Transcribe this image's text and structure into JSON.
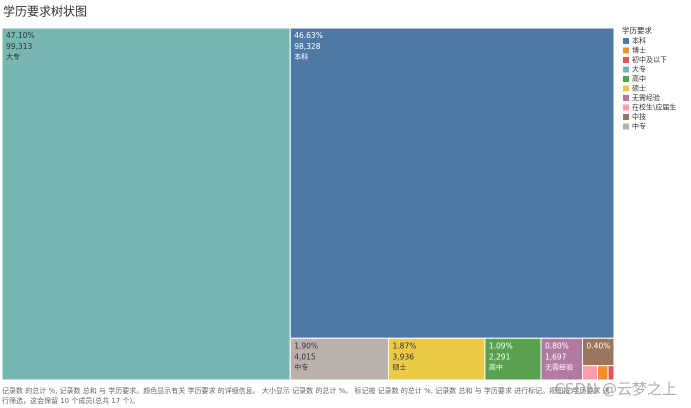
{
  "chart_data": {
    "type": "treemap",
    "title": "学历要求树状图",
    "legend_title": "学历要求",
    "categories": [
      "本科",
      "博士",
      "初中及以下",
      "大专",
      "高中",
      "硕士",
      "无需经验",
      "在校生\\应届生",
      "中技",
      "中专"
    ],
    "values": [
      98328,
      148,
      84,
      99313,
      2291,
      3936,
      1697,
      211,
      843,
      4015
    ],
    "value_labels": [
      "98,328",
      null,
      null,
      "99,313",
      "2,291",
      "3,936",
      "1,697",
      null,
      null,
      "4,015"
    ],
    "percents": [
      46.63,
      0.07,
      0.04,
      47.1,
      1.09,
      1.87,
      0.8,
      0.1,
      0.4,
      1.9
    ],
    "percent_labels": [
      "46.63%",
      null,
      null,
      "47.10%",
      "1.09%",
      "1.87%",
      "0.80%",
      null,
      "0.40%",
      "1.90%"
    ],
    "colors": [
      "#4e79a7",
      "#f28e2b",
      "#e15759",
      "#76b7b2",
      "#59a14f",
      "#edc948",
      "#b07aa1",
      "#ff9da7",
      "#9c755f",
      "#bab0ac"
    ],
    "footer": "记录数 的总计 %, 记录数 总和 与 学历要求。颜色显示有关 学历要求 的详细信息。 大小显示 记录数 的总计 %。 标记按 记录数 的总计 %, 记录数 总和 与 学历要求 进行标记。视图按 学历要求 进行筛选，这会保留 10 个成员(总共 17 个)。",
    "watermark": "CSDN @云梦之上"
  }
}
